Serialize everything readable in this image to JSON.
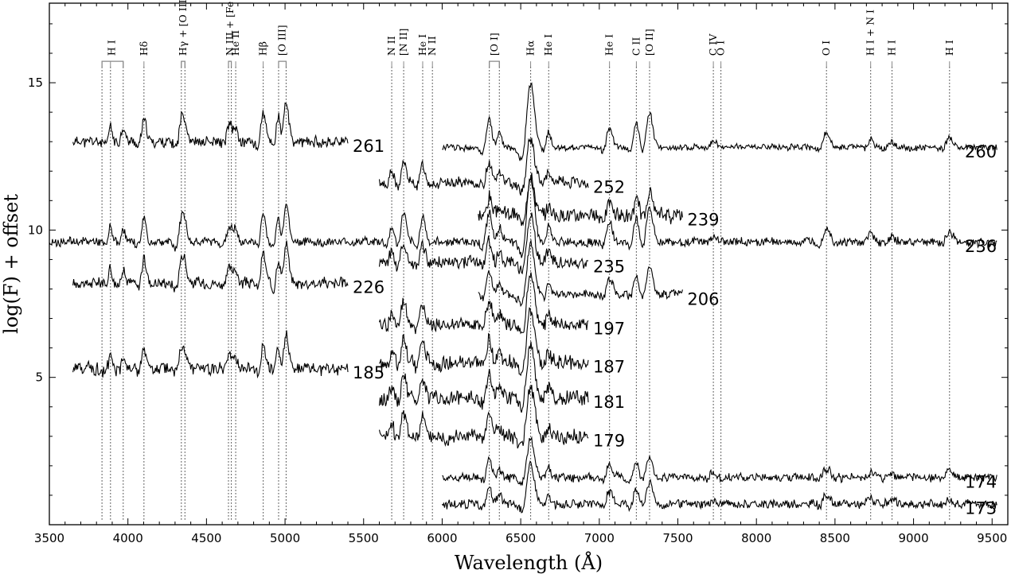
{
  "chart_data": {
    "type": "line",
    "xlabel": "Wavelength (Å)",
    "ylabel": "log(F) + offset",
    "xlim": [
      3500,
      9600
    ],
    "ylim": [
      0,
      17.7
    ],
    "xticks_major": [
      3500,
      4000,
      4500,
      5000,
      5500,
      6000,
      6500,
      7000,
      7500,
      8000,
      8500,
      9000,
      9500
    ],
    "xticks_minor_step": 100,
    "yticks_major": [
      5,
      10,
      15
    ],
    "yticks_minor_step": 1,
    "grid": false,
    "legend": "none",
    "line_ids": [
      {
        "label": "H I",
        "wavelengths": [
          3835,
          3889,
          3970
        ]
      },
      {
        "label": "Hδ",
        "wavelengths": [
          4102
        ]
      },
      {
        "label": "Hγ + [O III]",
        "wavelengths": [
          4340,
          4363
        ]
      },
      {
        "label": "N III + [Fe III]",
        "wavelengths": [
          4640,
          4658
        ]
      },
      {
        "label": "He II",
        "wavelengths": [
          4686
        ]
      },
      {
        "label": "Hβ",
        "wavelengths": [
          4861
        ]
      },
      {
        "label": "[O III]",
        "wavelengths": [
          4959,
          5007
        ]
      },
      {
        "label": "N II",
        "wavelengths": [
          5679
        ]
      },
      {
        "label": "[N II]",
        "wavelengths": [
          5755
        ]
      },
      {
        "label": "He I",
        "wavelengths": [
          5876
        ]
      },
      {
        "label": "N II",
        "wavelengths": [
          5938
        ]
      },
      {
        "label": "[O I]",
        "wavelengths": [
          6300,
          6364
        ]
      },
      {
        "label": "Hα",
        "wavelengths": [
          6563
        ]
      },
      {
        "label": "He I",
        "wavelengths": [
          6678
        ]
      },
      {
        "label": "He I",
        "wavelengths": [
          7065
        ]
      },
      {
        "label": "C II",
        "wavelengths": [
          7236
        ]
      },
      {
        "label": "[O II]",
        "wavelengths": [
          7320
        ]
      },
      {
        "label": "C IV",
        "wavelengths": [
          7726
        ]
      },
      {
        "label": "O I",
        "wavelengths": [
          7774
        ]
      },
      {
        "label": "O I",
        "wavelengths": [
          8446
        ]
      },
      {
        "label": "H I + N I",
        "wavelengths": [
          8727
        ]
      },
      {
        "label": "H I",
        "wavelengths": [
          8863
        ]
      },
      {
        "label": "H I",
        "wavelengths": [
          9229
        ]
      }
    ],
    "series": [
      {
        "name": "261",
        "x_range": [
          3650,
          5400
        ],
        "baseline": 13.0,
        "noise": 0.25,
        "strength": 1.0,
        "seed": 11
      },
      {
        "name": "260",
        "x_range": [
          6000,
          9530
        ],
        "baseline": 12.8,
        "noise": 0.15,
        "strength": 1.0,
        "seed": 12
      },
      {
        "name": "252",
        "x_range": [
          5600,
          6930
        ],
        "baseline": 11.6,
        "noise": 0.25,
        "strength": 0.7,
        "seed": 13
      },
      {
        "name": "239",
        "x_range": [
          6230,
          7530
        ],
        "baseline": 10.5,
        "noise": 0.35,
        "strength": 0.6,
        "seed": 14
      },
      {
        "name": "236",
        "x_range": [
          3500,
          9530
        ],
        "baseline": 9.6,
        "noise": 0.2,
        "strength": 1.0,
        "seed": 15
      },
      {
        "name": "235",
        "x_range": [
          5600,
          6930
        ],
        "baseline": 8.9,
        "noise": 0.3,
        "strength": 0.7,
        "seed": 16
      },
      {
        "name": "226",
        "x_range": [
          3650,
          5400
        ],
        "baseline": 8.2,
        "noise": 0.25,
        "strength": 1.0,
        "seed": 17
      },
      {
        "name": "206",
        "x_range": [
          6230,
          7530
        ],
        "baseline": 7.8,
        "noise": 0.2,
        "strength": 0.8,
        "seed": 18
      },
      {
        "name": "197",
        "x_range": [
          5600,
          6930
        ],
        "baseline": 6.8,
        "noise": 0.3,
        "strength": 0.8,
        "seed": 19
      },
      {
        "name": "187",
        "x_range": [
          5600,
          6930
        ],
        "baseline": 5.5,
        "noise": 0.35,
        "strength": 0.8,
        "seed": 20
      },
      {
        "name": "185",
        "x_range": [
          3650,
          5400
        ],
        "baseline": 5.3,
        "noise": 0.3,
        "strength": 0.8,
        "seed": 21
      },
      {
        "name": "181",
        "x_range": [
          5600,
          6930
        ],
        "baseline": 4.3,
        "noise": 0.35,
        "strength": 0.8,
        "seed": 22
      },
      {
        "name": "179",
        "x_range": [
          5600,
          6930
        ],
        "baseline": 3.0,
        "noise": 0.35,
        "strength": 0.8,
        "seed": 23
      },
      {
        "name": "174",
        "x_range": [
          6000,
          9530
        ],
        "baseline": 1.6,
        "noise": 0.2,
        "strength": 0.6,
        "seed": 24
      },
      {
        "name": "173",
        "x_range": [
          6000,
          9530
        ],
        "baseline": 0.7,
        "noise": 0.2,
        "strength": 0.6,
        "seed": 25
      }
    ]
  }
}
